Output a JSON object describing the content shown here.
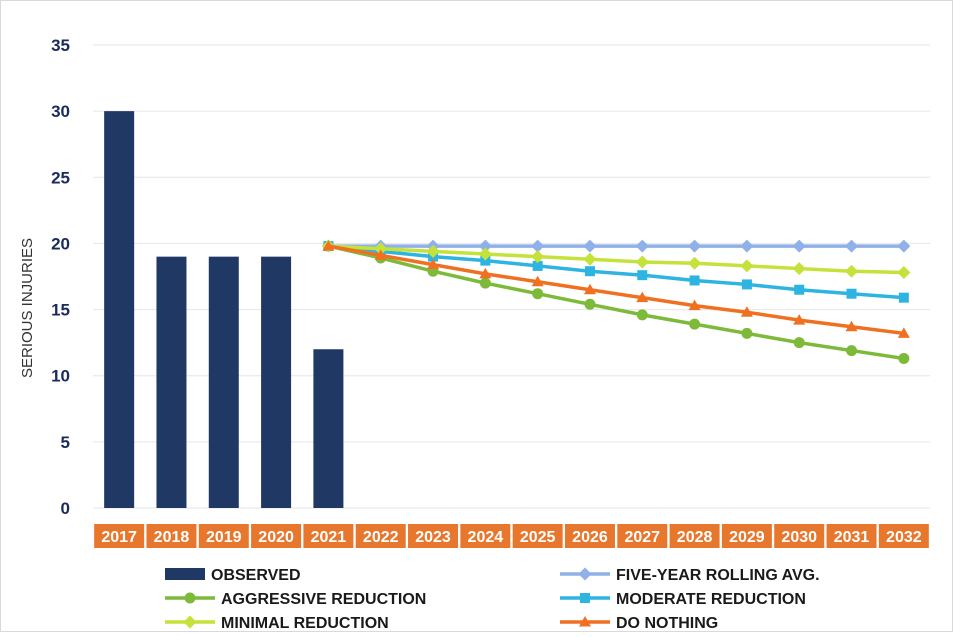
{
  "chart_data": {
    "type": "bar",
    "categories": [
      "2017",
      "2018",
      "2019",
      "2020",
      "2021",
      "2022",
      "2023",
      "2024",
      "2025",
      "2026",
      "2027",
      "2028",
      "2029",
      "2030",
      "2031",
      "2032"
    ],
    "ylabel": "SERIOUS INJURIES",
    "ylim": [
      0,
      35
    ],
    "yticks": [
      0,
      5,
      10,
      15,
      20,
      25,
      30,
      35
    ],
    "grid": true,
    "legend_position": "bottom",
    "bars": {
      "name": "OBSERVED",
      "color": "#1f3864",
      "values": [
        30,
        19,
        19,
        19,
        12,
        null,
        null,
        null,
        null,
        null,
        null,
        null,
        null,
        null,
        null,
        null
      ]
    },
    "series": [
      {
        "name": "FIVE-YEAR ROLLING AVG.",
        "color": "#8fb0e8",
        "marker": "diamond",
        "values": [
          null,
          null,
          null,
          null,
          19.8,
          19.8,
          19.8,
          19.8,
          19.8,
          19.8,
          19.8,
          19.8,
          19.8,
          19.8,
          19.8,
          19.8
        ]
      },
      {
        "name": "AGGRESSIVE REDUCTION",
        "color": "#7dba3a",
        "marker": "circle",
        "values": [
          null,
          null,
          null,
          null,
          19.8,
          18.9,
          17.9,
          17.0,
          16.2,
          15.4,
          14.6,
          13.9,
          13.2,
          12.5,
          11.9,
          11.3
        ]
      },
      {
        "name": "MODERATE REDUCTION",
        "color": "#2eb4e0",
        "marker": "square",
        "values": [
          null,
          null,
          null,
          null,
          19.8,
          19.4,
          19.0,
          18.7,
          18.3,
          17.9,
          17.6,
          17.2,
          16.9,
          16.5,
          16.2,
          15.9
        ]
      },
      {
        "name": "MINIMAL REDUCTION",
        "color": "#c4e23a",
        "marker": "diamond",
        "values": [
          null,
          null,
          null,
          null,
          19.8,
          19.6,
          19.4,
          19.2,
          19.0,
          18.8,
          18.6,
          18.5,
          18.3,
          18.1,
          17.9,
          17.8
        ]
      },
      {
        "name": "DO NOTHING",
        "color": "#f07021",
        "marker": "triangle",
        "values": [
          null,
          null,
          null,
          null,
          19.8,
          19.1,
          18.4,
          17.7,
          17.1,
          16.5,
          15.9,
          15.3,
          14.8,
          14.2,
          13.7,
          13.2
        ]
      }
    ],
    "x_tick_label_background": "#e8772e"
  }
}
